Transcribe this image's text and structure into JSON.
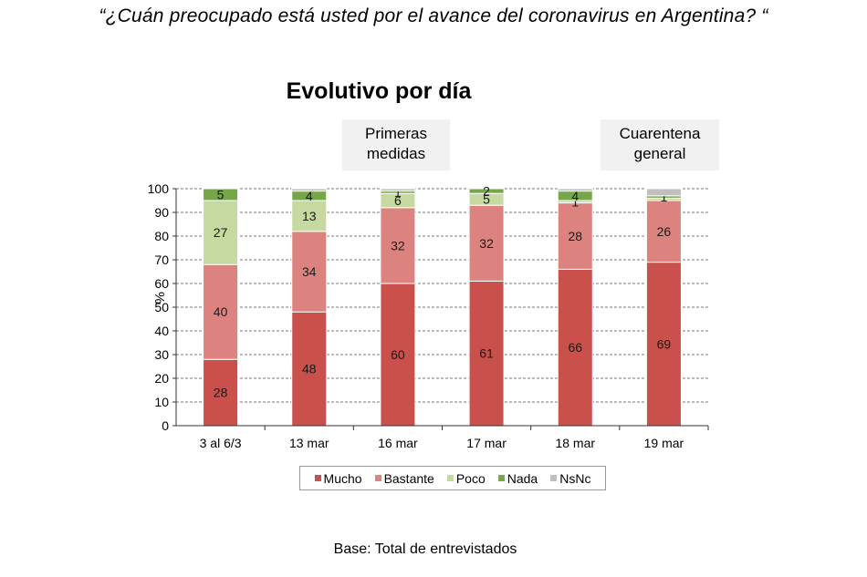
{
  "question": "“¿Cuán preocupado está usted por el avance del coronavirus en Argentina? “",
  "notes": {
    "primeras": "Primeras medidas",
    "cuarentena": "Cuarentena general"
  },
  "base": "Base: Total de entrevistados",
  "chart_data": {
    "type": "bar",
    "stacked": true,
    "title": "Evolutivo por día",
    "ylabel": "%",
    "ylim": [
      0,
      100
    ],
    "yticks": [
      0,
      10,
      20,
      30,
      40,
      50,
      60,
      70,
      80,
      90,
      100
    ],
    "grid": true,
    "legend_position": "bottom",
    "categories": [
      "3 al 6/3",
      "13 mar",
      "16 mar",
      "17 mar",
      "18 mar",
      "19 mar"
    ],
    "series": [
      {
        "name": "Mucho",
        "color": "#c9504b",
        "values": [
          28,
          48,
          60,
          61,
          66,
          69
        ]
      },
      {
        "name": "Bastante",
        "color": "#dc837f",
        "values": [
          40,
          34,
          32,
          32,
          28,
          26
        ]
      },
      {
        "name": "Poco",
        "color": "#c6d9a0",
        "values": [
          27,
          13,
          6,
          5,
          1,
          1
        ]
      },
      {
        "name": "Nada",
        "color": "#77a54a",
        "values": [
          5,
          4,
          1,
          2,
          4,
          1
        ]
      },
      {
        "name": "NsNc",
        "color": "#bfbfbf",
        "values": [
          0,
          1,
          1,
          0,
          1,
          3
        ]
      }
    ],
    "label_colors": [
      "#1a1a1a",
      "#1a1a1a",
      "#1a1a1a",
      "#1a1a1a",
      "#1a1a1a"
    ],
    "labels": [
      [
        "28",
        "48",
        "60",
        "61",
        "66",
        "69"
      ],
      [
        "40",
        "34",
        "32",
        "32",
        "28",
        "26"
      ],
      [
        "27",
        "13",
        "6",
        "5",
        "1",
        ""
      ],
      [
        "5",
        "4",
        "1",
        "2",
        "4",
        "1"
      ],
      [
        "",
        "",
        "",
        "",
        "",
        ""
      ]
    ]
  }
}
